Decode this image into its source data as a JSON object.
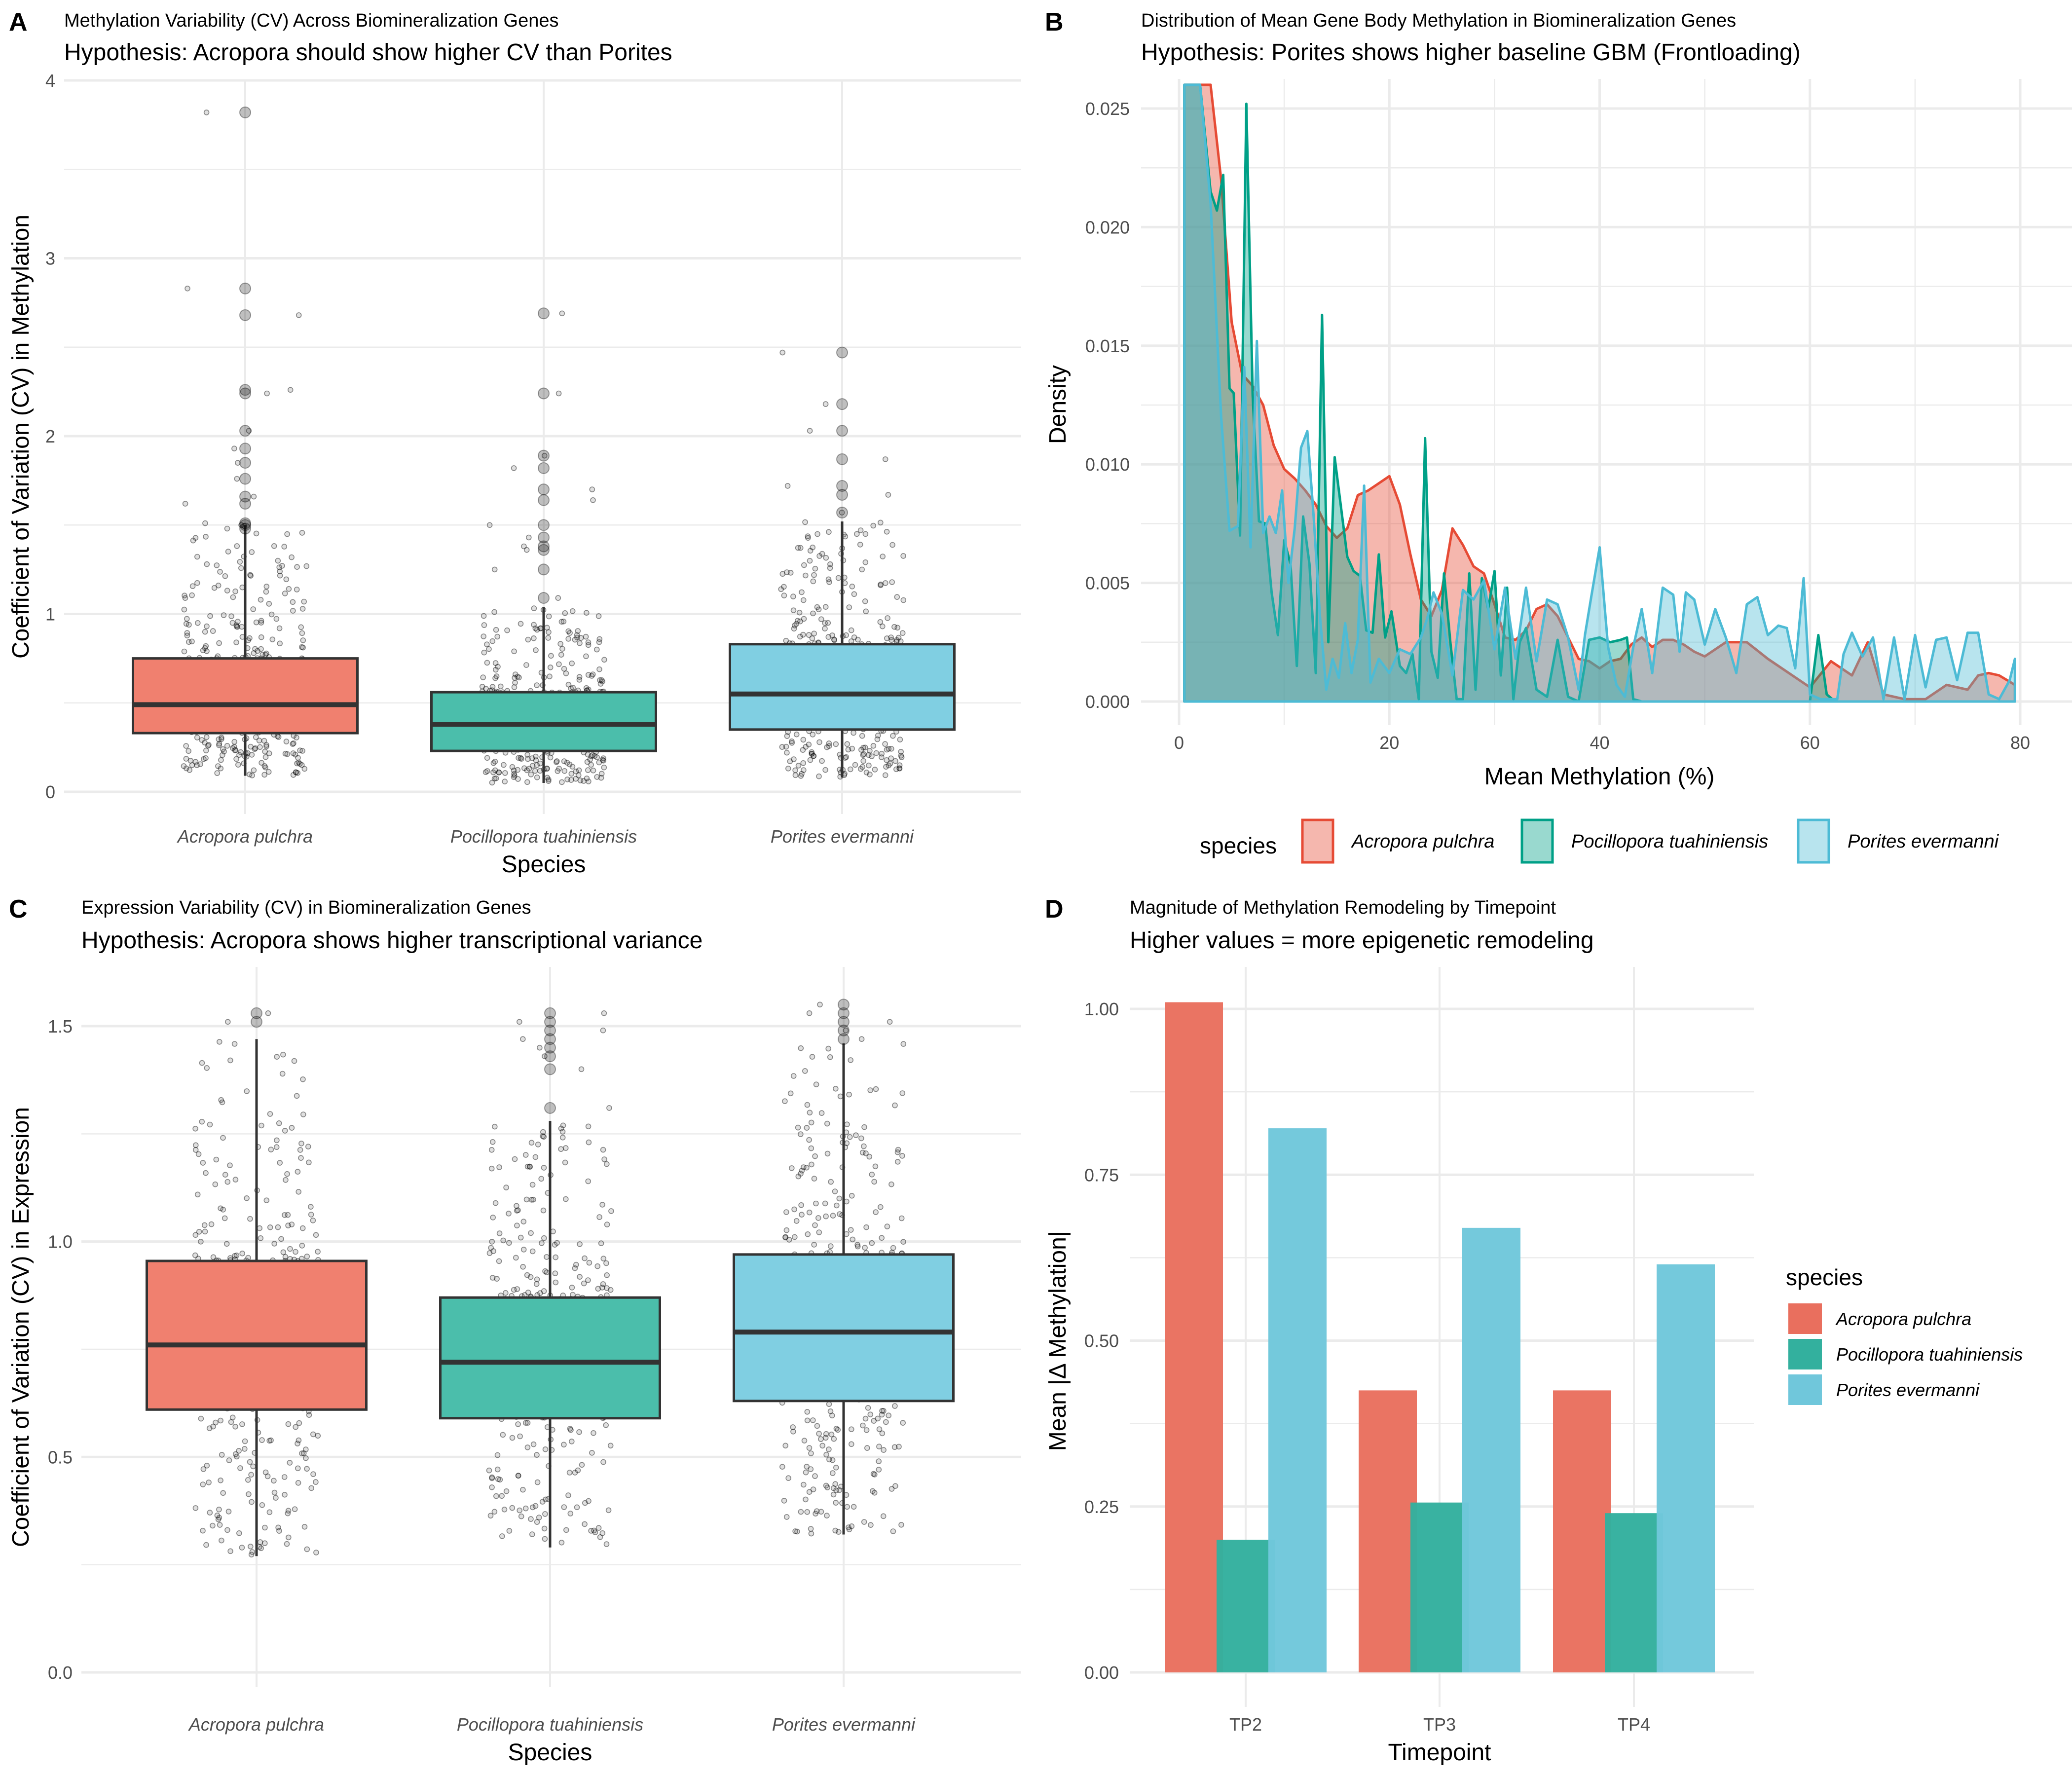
{
  "colors": {
    "acropora": "#E64B35",
    "pocillopora": "#00A087",
    "porites": "#4DBBD5",
    "acropora_fill": "#F0806F",
    "pocillopora_fill": "#4BBEAB",
    "porites_fill": "#80CFE2",
    "bar_acropora": "#E96F5E",
    "bar_pocillopora": "#33B09E",
    "bar_porites": "#70C7DB",
    "box_line": "#333333",
    "grid": "#EBEBEB"
  },
  "species": [
    "Acropora pulchra",
    "Pocillopora tuahiniensis",
    "Porites evermanni"
  ],
  "chart_data": [
    {
      "panel": "A",
      "type": "box",
      "title": "Methylation Variability (CV) Across Biomineralization Genes",
      "subtitle": "Hypothesis: Acropora should show higher CV than Porites",
      "xlabel": "Species",
      "ylabel": "Coefficient of Variation (CV) in Methylation",
      "categories": [
        "Acropora pulchra",
        "Pocillopora tuahiniensis",
        "Porites evermanni"
      ],
      "ylim": [
        0,
        4
      ],
      "yticks": [
        "0",
        "1",
        "2",
        "3",
        "4"
      ],
      "ytick_values": [
        0,
        1,
        2,
        3,
        4
      ],
      "grid": true,
      "boxes": [
        {
          "q1": 0.33,
          "median": 0.49,
          "q3": 0.75,
          "whisker_low": 0.09,
          "whisker_high": 1.5,
          "outliers": [
            3.82,
            2.83,
            2.68,
            2.26,
            2.24,
            2.03,
            1.93,
            1.85,
            1.76,
            1.66,
            1.62,
            1.51,
            1.5,
            1.48
          ]
        },
        {
          "q1": 0.23,
          "median": 0.38,
          "q3": 0.56,
          "whisker_low": 0.05,
          "whisker_high": 1.04,
          "outliers": [
            2.69,
            2.24,
            1.89,
            1.82,
            1.7,
            1.64,
            1.5,
            1.43,
            1.38,
            1.36,
            1.25,
            1.09
          ]
        },
        {
          "q1": 0.35,
          "median": 0.55,
          "q3": 0.83,
          "whisker_low": 0.08,
          "whisker_high": 1.52,
          "outliers": [
            2.47,
            2.18,
            2.03,
            1.87,
            1.72,
            1.67,
            1.57
          ]
        }
      ],
      "jitter_n": 420
    },
    {
      "panel": "B",
      "type": "area",
      "title": "Distribution of Mean Gene Body Methylation in Biomineralization Genes",
      "subtitle": "Hypothesis: Porites shows higher baseline GBM (Frontloading)",
      "xlabel": "Mean Methylation (%)",
      "ylabel": "Density",
      "xlim": [
        0,
        80
      ],
      "ylim": [
        0,
        0.026
      ],
      "xticks": [
        "0",
        "20",
        "40",
        "60",
        "80"
      ],
      "xtick_values": [
        0,
        20,
        40,
        60,
        80
      ],
      "yticks": [
        "0.000",
        "0.005",
        "0.010",
        "0.015",
        "0.020",
        "0.025"
      ],
      "ytick_values": [
        0,
        0.005,
        0.01,
        0.015,
        0.02,
        0.025
      ],
      "grid": true,
      "legend": {
        "title": "species",
        "position": "bottom"
      },
      "series": [
        {
          "name": "Acropora pulchra",
          "x": [
            0.5,
            2,
            3,
            4,
            5,
            6,
            7,
            8,
            9,
            10,
            11,
            12,
            13,
            14,
            15,
            16,
            17,
            18,
            19,
            20,
            21,
            22,
            23,
            24,
            25,
            26,
            27,
            28,
            29,
            30,
            31,
            32,
            33,
            34,
            35,
            36,
            37,
            38,
            39,
            40,
            41,
            42,
            43,
            44,
            45,
            46,
            47,
            48,
            49,
            50,
            52,
            54,
            56,
            58,
            60,
            62,
            64,
            65.5,
            67,
            69,
            71,
            73,
            75,
            76,
            77,
            78,
            79.5
          ],
          "y": [
            0.026,
            0.026,
            0.026,
            0.022,
            0.016,
            0.0138,
            0.0133,
            0.0125,
            0.0108,
            0.0098,
            0.0094,
            0.0089,
            0.0083,
            0.0074,
            0.0069,
            0.0073,
            0.0087,
            0.0089,
            0.0092,
            0.0095,
            0.0083,
            0.0062,
            0.0043,
            0.0036,
            0.0047,
            0.0073,
            0.0066,
            0.0057,
            0.0054,
            0.0041,
            0.0027,
            0.0026,
            0.003,
            0.0039,
            0.0041,
            0.0036,
            0.0027,
            0.0018,
            0.0017,
            0.0014,
            0.0017,
            0.0018,
            0.0024,
            0.0027,
            0.0023,
            0.0026,
            0.0026,
            0.0024,
            0.0021,
            0.0019,
            0.0025,
            0.0025,
            0.0018,
            0.0012,
            0.0006,
            0.0017,
            0.0011,
            0.0025,
            0.0003,
            0.0001,
            0.0001,
            0.0007,
            0.0005,
            0.0011,
            0.0012,
            0.0011,
            0.0007
          ]
        },
        {
          "name": "Pocillopora tuahiniensis",
          "x": [
            0.5,
            2,
            3,
            3.6,
            4.2,
            4.8,
            5.2,
            5.8,
            6.4,
            7,
            7.6,
            8.2,
            8.8,
            9.4,
            10,
            10.6,
            11.2,
            11.8,
            12.4,
            13,
            13.6,
            14.2,
            14.8,
            15.4,
            16,
            16.6,
            17.2,
            17.8,
            18.4,
            19,
            19.6,
            20.2,
            21,
            21.6,
            22.2,
            22.8,
            23.4,
            24,
            24.6,
            25.2,
            25.8,
            26.4,
            27,
            27.6,
            28.2,
            28.8,
            29.4,
            30,
            30.6,
            31.2,
            31.8,
            32.4,
            33,
            34,
            35,
            36,
            37,
            38,
            39,
            40,
            41,
            42,
            42.6,
            43.2,
            44,
            46,
            48,
            50,
            52,
            54,
            56,
            58,
            60,
            60.8,
            61.6,
            62.4,
            64,
            70,
            79.5
          ],
          "y": [
            0.026,
            0.026,
            0.0215,
            0.0207,
            0.0222,
            0.0132,
            0.013,
            0.007,
            0.0252,
            0.0129,
            0.0076,
            0.0075,
            0.0046,
            0.0028,
            0.0068,
            0.0058,
            0.0015,
            0.0078,
            0.0058,
            0.0012,
            0.0163,
            0.0025,
            0.0103,
            0.0082,
            0.0061,
            0.0055,
            0.0053,
            0.003,
            0.0029,
            0.0062,
            0.0027,
            0.0038,
            0.0015,
            0.0012,
            0.002,
            0.0001,
            0.0111,
            0.0021,
            0.001,
            0.0054,
            0.0025,
            0.0001,
            0.0001,
            0.0054,
            0.0005,
            0.0052,
            0.0039,
            0.0055,
            0.0011,
            0.0048,
            0.0001,
            0.0025,
            0.0031,
            0.0005,
            0.0002,
            0.0026,
            0.0002,
            0,
            0.0026,
            0.0027,
            0.0025,
            0.0026,
            0.0027,
            0.0001,
            0,
            0,
            0,
            0,
            0,
            0,
            0,
            0,
            0,
            0.0028,
            0.0003,
            0,
            0,
            0,
            0
          ]
        },
        {
          "name": "Porites evermanni",
          "x": [
            0.5,
            2,
            3,
            4,
            4.8,
            5.6,
            6.2,
            6.8,
            7.4,
            8,
            8.6,
            9.2,
            9.8,
            10.4,
            11,
            11.6,
            12.2,
            12.8,
            13.4,
            14,
            14.6,
            15.2,
            15.8,
            16.4,
            17,
            17.6,
            18.2,
            19,
            20,
            21,
            22,
            23,
            23.6,
            24.2,
            25,
            26,
            27,
            28,
            29,
            30,
            31,
            32,
            33,
            34,
            35,
            36,
            37,
            38,
            38.6,
            39.2,
            40,
            40.8,
            41.6,
            42.4,
            43.2,
            44,
            45,
            46,
            47,
            47.6,
            48.2,
            49,
            50,
            51,
            52,
            53,
            54,
            55,
            56,
            57,
            57.8,
            58.6,
            59.4,
            60,
            61,
            62,
            62.6,
            63.2,
            64,
            65,
            66,
            67,
            68,
            69,
            70,
            71,
            72,
            73,
            74,
            75,
            76,
            77,
            78,
            79,
            79.5
          ],
          "y": [
            0.026,
            0.026,
            0.021,
            0.012,
            0.0072,
            0.0074,
            0.0141,
            0.0065,
            0.0152,
            0.0071,
            0.0078,
            0.0071,
            0.0089,
            0.005,
            0.0073,
            0.0107,
            0.0114,
            0.0078,
            0.0036,
            0.0005,
            0.0018,
            0.001,
            0.0033,
            0.0012,
            0.0026,
            0.0091,
            0.0008,
            0.0018,
            0.0012,
            0.0022,
            0.002,
            0.0027,
            0.0035,
            0.0046,
            0.0037,
            0.0011,
            0.0047,
            0.0043,
            0.0051,
            0.0022,
            0.0048,
            0.0018,
            0.0048,
            0.0017,
            0.0043,
            0.0041,
            0.0027,
            0.0005,
            0.0028,
            0.0044,
            0.0065,
            0.0023,
            0.0007,
            0.0002,
            0.0023,
            0.0039,
            0.0012,
            0.0048,
            0.0045,
            0.0021,
            0.0046,
            0.0043,
            0.0024,
            0.0039,
            0.0027,
            0.0012,
            0.0041,
            0.0044,
            0.0028,
            0.0032,
            0.0031,
            0.0014,
            0.0052,
            0.0003,
            0.0001,
            0.0001,
            0.0001,
            0.002,
            0.0029,
            0.0019,
            0.0027,
            0.0001,
            0.0027,
            0.0001,
            0.0028,
            0.0006,
            0.0026,
            0.0027,
            0.0009,
            0.0029,
            0.0029,
            0.0003,
            0.0001,
            0.0009,
            0.0018
          ]
        }
      ]
    },
    {
      "panel": "C",
      "type": "box",
      "title": "Expression Variability (CV) in Biomineralization Genes",
      "subtitle": "Hypothesis: Acropora shows higher transcriptional variance",
      "xlabel": "Species",
      "ylabel": "Coefficient of Variation (CV) in Expression",
      "categories": [
        "Acropora pulchra",
        "Pocillopora tuahiniensis",
        "Porites evermanni"
      ],
      "ylim": [
        -0.05,
        1.6
      ],
      "yticks": [
        "0.0",
        "0.5",
        "1.0",
        "1.5"
      ],
      "ytick_values": [
        0,
        0.5,
        1.0,
        1.5
      ],
      "grid": true,
      "boxes": [
        {
          "q1": 0.61,
          "median": 0.76,
          "q3": 0.955,
          "whisker_low": 0.27,
          "whisker_high": 1.47,
          "outliers": [
            1.53,
            1.51
          ]
        },
        {
          "q1": 0.59,
          "median": 0.72,
          "q3": 0.87,
          "whisker_low": 0.29,
          "whisker_high": 1.28,
          "outliers": [
            1.53,
            1.51,
            1.49,
            1.47,
            1.45,
            1.43,
            1.4,
            1.31
          ]
        },
        {
          "q1": 0.63,
          "median": 0.79,
          "q3": 0.97,
          "whisker_low": 0.32,
          "whisker_high": 1.46,
          "outliers": [
            1.55,
            1.53,
            1.51,
            1.49,
            1.47
          ]
        }
      ],
      "jitter_n": 420
    },
    {
      "panel": "D",
      "type": "bar",
      "title": "Magnitude of Methylation Remodeling by Timepoint",
      "subtitle": "Higher values = more epigenetic remodeling",
      "xlabel": "Timepoint",
      "ylabel": "Mean |Δ Methylation|",
      "categories": [
        "TP2",
        "TP3",
        "TP4"
      ],
      "ylim": [
        -0.05,
        1.05
      ],
      "yticks": [
        "0.00",
        "0.25",
        "0.50",
        "0.75",
        "1.00"
      ],
      "ytick_values": [
        0,
        0.25,
        0.5,
        0.75,
        1.0
      ],
      "grid": true,
      "legend": {
        "title": "species",
        "position": "right"
      },
      "series": [
        {
          "name": "Acropora pulchra",
          "values": [
            1.01,
            0.425,
            0.425
          ]
        },
        {
          "name": "Pocillopora tuahiniensis",
          "values": [
            0.2,
            0.256,
            0.24
          ]
        },
        {
          "name": "Porites evermanni",
          "values": [
            0.82,
            0.67,
            0.615
          ]
        }
      ]
    }
  ]
}
